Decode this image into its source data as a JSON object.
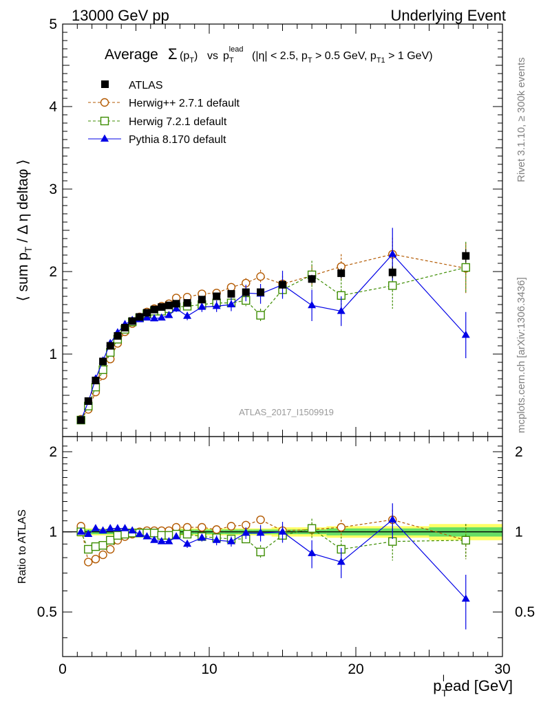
{
  "header": {
    "left": "13000 GeV pp",
    "right": "Underlying Event"
  },
  "side_labels": {
    "rivet": "Rivet 3.1.10, ≥ 300k events",
    "mcplots": "mcplots.cern.ch [arXiv:1306.3436]"
  },
  "analysis_id": "ATLAS_2017_I1509919",
  "colors": {
    "data": "#000000",
    "herwigpp": "#b35900",
    "herwig7": "#3c8c00",
    "pythia": "#0000e6",
    "band_inner": "#66dd66",
    "band_outer": "#ffff66"
  },
  "chart_data": [
    {
      "type": "scatter",
      "title": "Average Σ(p_T) vs p_T^lead (|η| < 2.5, p_T > 0.5 GeV, p_T1 > 1 GeV)",
      "xlabel": "p_T^lead [GeV]",
      "ylabel": "⟨ sum p_T / Δη deltaφ ⟩",
      "xlim": [
        0,
        30
      ],
      "ylim": [
        0,
        5
      ],
      "yticks": [
        "1",
        "2",
        "3",
        "4",
        "5"
      ],
      "legend_position": "top-left",
      "x": [
        1.25,
        1.75,
        2.25,
        2.75,
        3.25,
        3.75,
        4.25,
        4.75,
        5.25,
        5.75,
        6.25,
        6.75,
        7.25,
        7.75,
        8.5,
        9.5,
        10.5,
        11.5,
        12.5,
        13.5,
        15,
        17,
        19,
        22.5,
        27.5
      ],
      "series": [
        {
          "name": "ATLAS",
          "marker": "filled-square",
          "values": [
            0.2,
            0.43,
            0.68,
            0.91,
            1.1,
            1.22,
            1.32,
            1.4,
            1.45,
            1.5,
            1.54,
            1.57,
            1.59,
            1.61,
            1.62,
            1.66,
            1.7,
            1.73,
            1.75,
            1.75,
            1.84,
            1.91,
            1.98,
            1.99,
            2.19
          ],
          "errors": [
            0.01,
            0.01,
            0.01,
            0.01,
            0.01,
            0.01,
            0.01,
            0.01,
            0.01,
            0.01,
            0.01,
            0.01,
            0.02,
            0.02,
            0.02,
            0.02,
            0.03,
            0.03,
            0.03,
            0.04,
            0.05,
            0.05,
            0.06,
            0.07,
            0.08
          ]
        },
        {
          "name": "Herwig++ 2.7.1 default",
          "marker": "open-circle",
          "values": [
            0.21,
            0.33,
            0.54,
            0.74,
            0.94,
            1.13,
            1.27,
            1.37,
            1.45,
            1.51,
            1.55,
            1.58,
            1.61,
            1.68,
            1.69,
            1.73,
            1.74,
            1.81,
            1.86,
            1.94,
            1.85,
            1.95,
            2.06,
            2.21,
            2.04
          ],
          "errors": [
            0.01,
            0.01,
            0.01,
            0.01,
            0.01,
            0.01,
            0.01,
            0.01,
            0.01,
            0.01,
            0.02,
            0.02,
            0.02,
            0.03,
            0.03,
            0.03,
            0.04,
            0.05,
            0.06,
            0.08,
            0.1,
            0.12,
            0.15,
            0.2,
            0.3
          ]
        },
        {
          "name": "Herwig 7.2.1 default",
          "marker": "open-square",
          "values": [
            0.2,
            0.37,
            0.6,
            0.81,
            1.02,
            1.18,
            1.3,
            1.39,
            1.44,
            1.49,
            1.52,
            1.52,
            1.55,
            1.57,
            1.58,
            1.6,
            1.62,
            1.62,
            1.65,
            1.47,
            1.78,
            1.96,
            1.71,
            1.83,
            2.05
          ],
          "errors": [
            0.01,
            0.01,
            0.01,
            0.01,
            0.01,
            0.01,
            0.01,
            0.01,
            0.01,
            0.01,
            0.02,
            0.02,
            0.02,
            0.03,
            0.03,
            0.04,
            0.05,
            0.06,
            0.07,
            0.08,
            0.1,
            0.17,
            0.2,
            0.28,
            0.31
          ]
        },
        {
          "name": "Pythia 8.170 default",
          "marker": "filled-triangle",
          "values": [
            0.2,
            0.42,
            0.7,
            0.92,
            1.13,
            1.26,
            1.36,
            1.41,
            1.42,
            1.44,
            1.43,
            1.44,
            1.47,
            1.55,
            1.46,
            1.57,
            1.58,
            1.6,
            1.74,
            1.73,
            1.84,
            1.59,
            1.52,
            2.21,
            1.23
          ],
          "errors": [
            0.01,
            0.01,
            0.01,
            0.01,
            0.01,
            0.01,
            0.02,
            0.02,
            0.02,
            0.02,
            0.03,
            0.03,
            0.03,
            0.04,
            0.05,
            0.06,
            0.07,
            0.08,
            0.1,
            0.12,
            0.17,
            0.19,
            0.18,
            0.32,
            0.28
          ]
        }
      ]
    },
    {
      "type": "scatter",
      "xlabel": "p_T^lead [GeV]",
      "ylabel": "Ratio to ATLAS",
      "xlim": [
        0,
        30
      ],
      "ylim": [
        0.34,
        2.28
      ],
      "xticks": [
        "0",
        "10",
        "20",
        "30"
      ],
      "yticks": [
        "0.5",
        "1",
        "2"
      ],
      "reference_line": 1,
      "x": [
        1.25,
        1.75,
        2.25,
        2.75,
        3.25,
        3.75,
        4.25,
        4.75,
        5.25,
        5.75,
        6.25,
        6.75,
        7.25,
        7.75,
        8.5,
        9.5,
        10.5,
        11.5,
        12.5,
        13.5,
        15,
        17,
        19,
        22.5,
        27.5
      ],
      "band_halfwidth_inner": [
        0.02,
        0.02,
        0.02,
        0.02,
        0.02,
        0.02,
        0.02,
        0.02,
        0.02,
        0.02,
        0.02,
        0.02,
        0.02,
        0.02,
        0.02,
        0.02,
        0.02,
        0.02,
        0.02,
        0.02,
        0.02,
        0.02,
        0.03,
        0.03,
        0.04
      ],
      "band_halfwidth_outer": [
        0.04,
        0.03,
        0.03,
        0.03,
        0.03,
        0.03,
        0.03,
        0.03,
        0.03,
        0.03,
        0.03,
        0.03,
        0.03,
        0.03,
        0.03,
        0.03,
        0.03,
        0.03,
        0.03,
        0.03,
        0.04,
        0.04,
        0.05,
        0.05,
        0.07
      ],
      "series": [
        {
          "name": "Herwig++ 2.7.1 default",
          "values": [
            1.05,
            0.77,
            0.79,
            0.82,
            0.86,
            0.93,
            0.96,
            0.98,
            1.0,
            1.01,
            1.01,
            1.01,
            1.01,
            1.04,
            1.04,
            1.04,
            1.02,
            1.05,
            1.06,
            1.11,
            1.01,
            1.02,
            1.04,
            1.11,
            0.93
          ],
          "errors": [
            0.01,
            0.01,
            0.01,
            0.01,
            0.01,
            0.01,
            0.01,
            0.01,
            0.01,
            0.01,
            0.01,
            0.01,
            0.01,
            0.01,
            0.02,
            0.02,
            0.02,
            0.03,
            0.03,
            0.04,
            0.05,
            0.06,
            0.07,
            0.1,
            0.14
          ]
        },
        {
          "name": "Herwig 7.2.1 default",
          "values": [
            1.0,
            0.86,
            0.88,
            0.89,
            0.93,
            0.97,
            0.98,
            0.99,
            0.99,
            0.99,
            0.99,
            0.97,
            0.97,
            0.98,
            0.98,
            0.96,
            0.95,
            0.94,
            0.94,
            0.84,
            0.97,
            1.03,
            0.86,
            0.92,
            0.93
          ],
          "errors": [
            0.01,
            0.01,
            0.01,
            0.01,
            0.01,
            0.01,
            0.01,
            0.01,
            0.01,
            0.01,
            0.01,
            0.01,
            0.01,
            0.02,
            0.02,
            0.02,
            0.03,
            0.03,
            0.04,
            0.05,
            0.05,
            0.09,
            0.1,
            0.14,
            0.14
          ]
        },
        {
          "name": "Pythia 8.170 default",
          "values": [
            1.0,
            0.98,
            1.03,
            1.01,
            1.03,
            1.03,
            1.03,
            1.01,
            0.98,
            0.96,
            0.93,
            0.92,
            0.92,
            0.96,
            0.9,
            0.95,
            0.93,
            0.92,
            0.99,
            0.99,
            1.0,
            0.83,
            0.77,
            1.11,
            0.56
          ],
          "errors": [
            0.01,
            0.01,
            0.01,
            0.01,
            0.01,
            0.01,
            0.01,
            0.01,
            0.01,
            0.01,
            0.02,
            0.02,
            0.02,
            0.02,
            0.03,
            0.03,
            0.04,
            0.04,
            0.05,
            0.07,
            0.09,
            0.1,
            0.1,
            0.17,
            0.13
          ]
        }
      ]
    }
  ]
}
